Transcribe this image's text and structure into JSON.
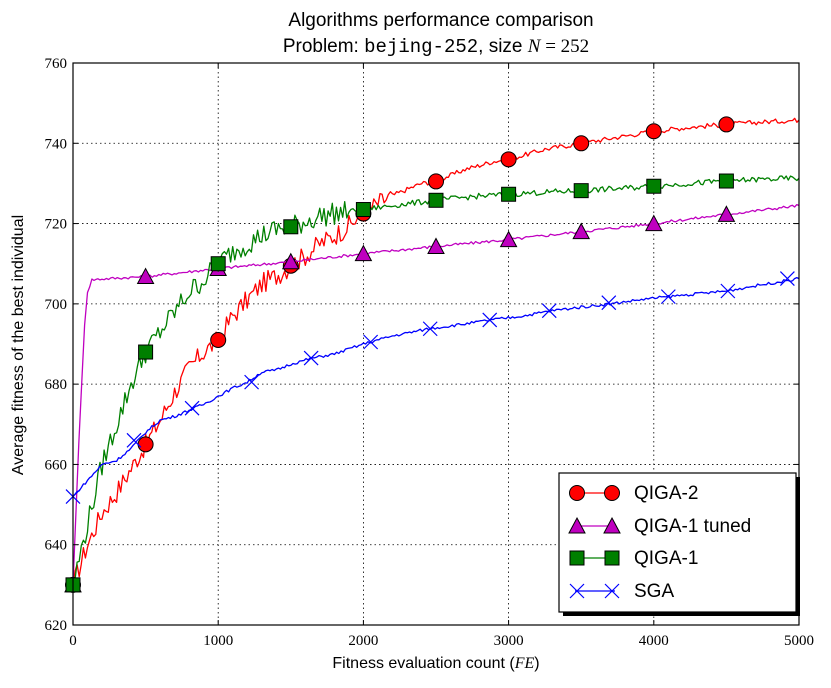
{
  "chart_data": {
    "type": "line",
    "title": {
      "line1": "Algorithms performance comparison",
      "line2_prefix": "Problem: ",
      "line2_problem": "bejing-252",
      "line2_mid": ", size ",
      "line2_var": "N",
      "line2_eq": " = 252"
    },
    "xlabel": {
      "text": "Fitness evaluation count (",
      "var": "FE",
      "close": ")"
    },
    "ylabel": "Average fitness of the best individual",
    "xlim": [
      0,
      5000
    ],
    "ylim": [
      620,
      760
    ],
    "xticks": [
      0,
      1000,
      2000,
      3000,
      4000,
      5000
    ],
    "yticks": [
      620,
      640,
      660,
      680,
      700,
      720,
      740,
      760
    ],
    "grid": true,
    "legend_position": "bottom-right",
    "series": [
      {
        "name": "QIGA-2",
        "color": "#ff0000",
        "marker": "circle",
        "marker_color": "#ff0000",
        "curve": [
          [
            0,
            630
          ],
          [
            100,
            640
          ],
          [
            200,
            648
          ],
          [
            300,
            653
          ],
          [
            400,
            659
          ],
          [
            500,
            665
          ],
          [
            600,
            671
          ],
          [
            700,
            678
          ],
          [
            800,
            684
          ],
          [
            900,
            688
          ],
          [
            1000,
            691
          ],
          [
            1100,
            697
          ],
          [
            1200,
            701
          ],
          [
            1300,
            705
          ],
          [
            1400,
            707
          ],
          [
            1500,
            709.5
          ],
          [
            1600,
            712
          ],
          [
            1700,
            715
          ],
          [
            1800,
            717
          ],
          [
            1900,
            719.5
          ],
          [
            2000,
            722.5
          ],
          [
            2100,
            725
          ],
          [
            2200,
            727
          ],
          [
            2300,
            728.5
          ],
          [
            2400,
            730
          ],
          [
            2500,
            730.5
          ],
          [
            2600,
            732
          ],
          [
            2700,
            733.5
          ],
          [
            2800,
            734.5
          ],
          [
            2900,
            735.5
          ],
          [
            3000,
            736
          ],
          [
            3250,
            738.5
          ],
          [
            3500,
            740
          ],
          [
            3750,
            741.5
          ],
          [
            4000,
            743
          ],
          [
            4250,
            744
          ],
          [
            4500,
            744.7
          ],
          [
            4750,
            745.3
          ],
          [
            5000,
            745.8
          ]
        ],
        "markers": [
          [
            0,
            630
          ],
          [
            500,
            665
          ],
          [
            1000,
            691
          ],
          [
            1500,
            709.5
          ],
          [
            2000,
            722.5
          ],
          [
            2500,
            730.5
          ],
          [
            3000,
            736
          ],
          [
            3500,
            740
          ],
          [
            4000,
            743
          ],
          [
            4500,
            744.7
          ]
        ]
      },
      {
        "name": "QIGA-1 tuned",
        "color": "#c000c0",
        "marker": "triangle",
        "marker_color": "#bf00bf",
        "curve": [
          [
            0,
            630
          ],
          [
            20,
            648
          ],
          [
            40,
            665
          ],
          [
            60,
            680
          ],
          [
            80,
            695
          ],
          [
            100,
            703
          ],
          [
            130,
            706
          ],
          [
            200,
            706.2
          ],
          [
            500,
            706.8
          ],
          [
            1000,
            708.8
          ],
          [
            1500,
            710.5
          ],
          [
            2000,
            712.5
          ],
          [
            2500,
            714.3
          ],
          [
            3000,
            716
          ],
          [
            3500,
            718
          ],
          [
            4000,
            720
          ],
          [
            4500,
            722.3
          ],
          [
            5000,
            724.5
          ]
        ],
        "markers": [
          [
            0,
            630
          ],
          [
            500,
            706.8
          ],
          [
            1000,
            708.8
          ],
          [
            1500,
            710.5
          ],
          [
            2000,
            712.5
          ],
          [
            2500,
            714.3
          ],
          [
            3000,
            716
          ],
          [
            3500,
            718
          ],
          [
            4000,
            720
          ],
          [
            4500,
            722.3
          ]
        ]
      },
      {
        "name": "QIGA-1",
        "color": "#008000",
        "marker": "square",
        "marker_color": "#007f00",
        "curve": [
          [
            0,
            630
          ],
          [
            100,
            645
          ],
          [
            200,
            660
          ],
          [
            300,
            670
          ],
          [
            400,
            680
          ],
          [
            500,
            688
          ],
          [
            600,
            693
          ],
          [
            700,
            698
          ],
          [
            800,
            703
          ],
          [
            900,
            706
          ],
          [
            1000,
            710
          ],
          [
            1100,
            713
          ],
          [
            1200,
            715
          ],
          [
            1300,
            717
          ],
          [
            1400,
            718.5
          ],
          [
            1500,
            719.2
          ],
          [
            1600,
            720.5
          ],
          [
            1700,
            721.8
          ],
          [
            1800,
            722.5
          ],
          [
            1900,
            723
          ],
          [
            2000,
            723.5
          ],
          [
            2250,
            724.7
          ],
          [
            2500,
            725.8
          ],
          [
            2750,
            726.7
          ],
          [
            3000,
            727.3
          ],
          [
            3250,
            727.8
          ],
          [
            3500,
            728.2
          ],
          [
            3750,
            728.7
          ],
          [
            4000,
            729.3
          ],
          [
            4250,
            730
          ],
          [
            4500,
            730.6
          ],
          [
            4750,
            731
          ],
          [
            5000,
            731.3
          ]
        ],
        "markers": [
          [
            0,
            630
          ],
          [
            500,
            688
          ],
          [
            1000,
            710
          ],
          [
            1500,
            719.2
          ],
          [
            2000,
            723.5
          ],
          [
            2500,
            725.8
          ],
          [
            3000,
            727.3
          ],
          [
            3500,
            728.2
          ],
          [
            4000,
            729.3
          ],
          [
            4500,
            730.6
          ]
        ]
      },
      {
        "name": "SGA",
        "color": "#0000ff",
        "marker": "x",
        "marker_color": "#0000ff",
        "curve": [
          [
            0,
            652
          ],
          [
            100,
            656
          ],
          [
            200,
            660
          ],
          [
            300,
            661
          ],
          [
            400,
            664
          ],
          [
            500,
            668
          ],
          [
            600,
            671
          ],
          [
            700,
            672
          ],
          [
            800,
            673.5
          ],
          [
            900,
            675
          ],
          [
            1000,
            677
          ],
          [
            1100,
            679
          ],
          [
            1200,
            680.5
          ],
          [
            1300,
            683
          ],
          [
            1400,
            683.5
          ],
          [
            1500,
            685
          ],
          [
            1650,
            686.5
          ],
          [
            1800,
            687.5
          ],
          [
            2000,
            690
          ],
          [
            2200,
            692
          ],
          [
            2450,
            693.8
          ],
          [
            2700,
            695
          ],
          [
            2880,
            696
          ],
          [
            3100,
            697
          ],
          [
            3300,
            698.3
          ],
          [
            3500,
            699.2
          ],
          [
            3700,
            700
          ],
          [
            3900,
            701
          ],
          [
            4100,
            701.8
          ],
          [
            4300,
            702.5
          ],
          [
            4500,
            703.2
          ],
          [
            4700,
            704.5
          ],
          [
            5000,
            706.3
          ]
        ],
        "markers": [
          [
            0,
            652
          ],
          [
            420,
            666
          ],
          [
            820,
            674
          ],
          [
            1230,
            680.5
          ],
          [
            1640,
            686.5
          ],
          [
            2050,
            690.5
          ],
          [
            2460,
            693.8
          ],
          [
            2870,
            696
          ],
          [
            3280,
            698.3
          ],
          [
            3690,
            700.3
          ],
          [
            4100,
            701.8
          ],
          [
            4510,
            703.2
          ],
          [
            4920,
            706.3
          ]
        ]
      }
    ]
  }
}
